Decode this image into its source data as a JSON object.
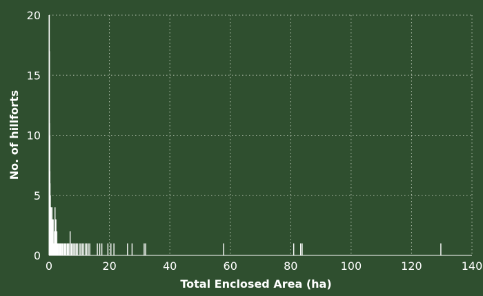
{
  "chart_data": {
    "type": "bar",
    "title": "",
    "xlabel": "Total Enclosed Area (ha)",
    "ylabel": "No. of hillforts",
    "xlim": [
      0,
      140
    ],
    "ylim": [
      0,
      20
    ],
    "xticks": [
      0,
      20,
      40,
      60,
      80,
      100,
      120,
      140
    ],
    "yticks": [
      0,
      5,
      10,
      15,
      20
    ],
    "grid": true,
    "legend": "none",
    "colors": {
      "background": "#2f4f2f",
      "bars": "#ffffff",
      "grid": "#b7c4b2",
      "text": "#ffffff"
    },
    "bars": [
      {
        "x": 0.05,
        "y": 20
      },
      {
        "x": 0.1,
        "y": 20
      },
      {
        "x": 0.15,
        "y": 17
      },
      {
        "x": 0.2,
        "y": 11
      },
      {
        "x": 0.25,
        "y": 10
      },
      {
        "x": 0.3,
        "y": 7
      },
      {
        "x": 0.35,
        "y": 6
      },
      {
        "x": 0.4,
        "y": 4
      },
      {
        "x": 0.45,
        "y": 5
      },
      {
        "x": 0.5,
        "y": 4
      },
      {
        "x": 0.55,
        "y": 3
      },
      {
        "x": 0.6,
        "y": 3
      },
      {
        "x": 0.65,
        "y": 2
      },
      {
        "x": 0.7,
        "y": 4
      },
      {
        "x": 0.8,
        "y": 3
      },
      {
        "x": 0.9,
        "y": 2
      },
      {
        "x": 1.0,
        "y": 4
      },
      {
        "x": 1.1,
        "y": 1
      },
      {
        "x": 1.2,
        "y": 3
      },
      {
        "x": 1.3,
        "y": 2
      },
      {
        "x": 1.4,
        "y": 3
      },
      {
        "x": 1.5,
        "y": 1
      },
      {
        "x": 1.6,
        "y": 1
      },
      {
        "x": 1.8,
        "y": 2
      },
      {
        "x": 2.0,
        "y": 4
      },
      {
        "x": 2.1,
        "y": 3
      },
      {
        "x": 2.2,
        "y": 2
      },
      {
        "x": 2.3,
        "y": 3
      },
      {
        "x": 2.4,
        "y": 1
      },
      {
        "x": 2.6,
        "y": 2
      },
      {
        "x": 2.8,
        "y": 1
      },
      {
        "x": 3.0,
        "y": 1
      },
      {
        "x": 3.2,
        "y": 1
      },
      {
        "x": 3.5,
        "y": 1
      },
      {
        "x": 3.8,
        "y": 1
      },
      {
        "x": 4.0,
        "y": 1
      },
      {
        "x": 4.3,
        "y": 1
      },
      {
        "x": 4.6,
        "y": 1
      },
      {
        "x": 5.0,
        "y": 1
      },
      {
        "x": 5.3,
        "y": 1
      },
      {
        "x": 5.6,
        "y": 1
      },
      {
        "x": 6.0,
        "y": 1
      },
      {
        "x": 6.3,
        "y": 1
      },
      {
        "x": 6.6,
        "y": 1
      },
      {
        "x": 7.0,
        "y": 2
      },
      {
        "x": 7.4,
        "y": 1
      },
      {
        "x": 7.8,
        "y": 1
      },
      {
        "x": 8.2,
        "y": 1
      },
      {
        "x": 8.6,
        "y": 1
      },
      {
        "x": 9.0,
        "y": 1
      },
      {
        "x": 9.4,
        "y": 1
      },
      {
        "x": 10.0,
        "y": 1
      },
      {
        "x": 10.5,
        "y": 1
      },
      {
        "x": 11.0,
        "y": 1
      },
      {
        "x": 11.5,
        "y": 1
      },
      {
        "x": 12.0,
        "y": 1
      },
      {
        "x": 12.5,
        "y": 1
      },
      {
        "x": 13.0,
        "y": 1
      },
      {
        "x": 13.5,
        "y": 1
      },
      {
        "x": 16.0,
        "y": 1
      },
      {
        "x": 16.8,
        "y": 1
      },
      {
        "x": 17.5,
        "y": 1
      },
      {
        "x": 19.5,
        "y": 1
      },
      {
        "x": 20.5,
        "y": 1
      },
      {
        "x": 21.5,
        "y": 1
      },
      {
        "x": 26.0,
        "y": 1
      },
      {
        "x": 27.5,
        "y": 1
      },
      {
        "x": 31.5,
        "y": 1
      },
      {
        "x": 32.0,
        "y": 1
      },
      {
        "x": 57.8,
        "y": 1
      },
      {
        "x": 81.0,
        "y": 1
      },
      {
        "x": 83.3,
        "y": 1
      },
      {
        "x": 83.8,
        "y": 1
      },
      {
        "x": 129.7,
        "y": 1
      }
    ]
  }
}
